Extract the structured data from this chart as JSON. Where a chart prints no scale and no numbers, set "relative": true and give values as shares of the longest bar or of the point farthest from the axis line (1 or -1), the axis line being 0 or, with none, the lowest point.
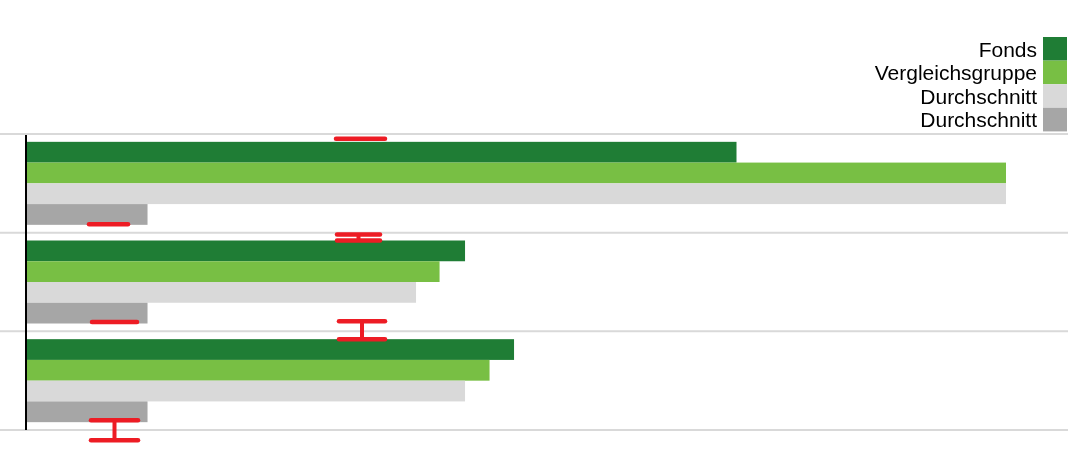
{
  "chart_data": {
    "type": "bar",
    "orientation": "horizontal",
    "relative": true,
    "categories": [
      null,
      null,
      null
    ],
    "series": [
      {
        "name": "Fonds",
        "color": "#1f7d35",
        "values": [
          0.725,
          0.448,
          0.498
        ]
      },
      {
        "name": "Vergleichsgruppe",
        "color": "#78bf44",
        "values": [
          1,
          0.422,
          0.473
        ]
      },
      {
        "name": "Durchschnitt",
        "color": "#d9d9d9",
        "values": [
          1,
          0.398,
          0.448
        ]
      },
      {
        "name": "Durchschnitt",
        "color": "#a6a6a6",
        "values": [
          0.124,
          0.124,
          0.124
        ]
      }
    ],
    "legend": "top right",
    "grid": "y"
  }
}
